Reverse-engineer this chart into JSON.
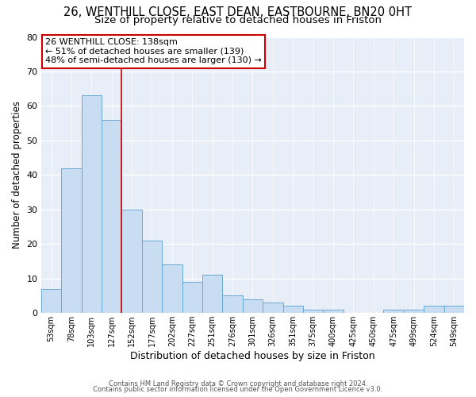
{
  "title": "26, WENTHILL CLOSE, EAST DEAN, EASTBOURNE, BN20 0HT",
  "subtitle": "Size of property relative to detached houses in Friston",
  "xlabel": "Distribution of detached houses by size in Friston",
  "ylabel": "Number of detached properties",
  "categories": [
    "53sqm",
    "78sqm",
    "103sqm",
    "127sqm",
    "152sqm",
    "177sqm",
    "202sqm",
    "227sqm",
    "251sqm",
    "276sqm",
    "301sqm",
    "326sqm",
    "351sqm",
    "375sqm",
    "400sqm",
    "425sqm",
    "450sqm",
    "475sqm",
    "499sqm",
    "524sqm",
    "549sqm"
  ],
  "values": [
    7,
    42,
    63,
    56,
    30,
    21,
    14,
    9,
    11,
    5,
    4,
    3,
    2,
    1,
    1,
    0,
    0,
    1,
    1,
    2,
    2
  ],
  "bar_color": "#c9ddf2",
  "bar_edge_color": "#6aaad4",
  "vline_color": "#cc0000",
  "annotation_text": "26 WENTHILL CLOSE: 138sqm\n← 51% of detached houses are smaller (139)\n48% of semi-detached houses are larger (130) →",
  "annotation_box_color": "#ffffff",
  "annotation_box_edge": "#cc0000",
  "ylim": [
    0,
    80
  ],
  "yticks": [
    0,
    10,
    20,
    30,
    40,
    50,
    60,
    70,
    80
  ],
  "footer1": "Contains HM Land Registry data © Crown copyright and database right 2024.",
  "footer2": "Contains public sector information licensed under the Open Government Licence v3.0.",
  "plot_bg_color": "#e8eef8",
  "fig_bg_color": "#ffffff",
  "grid_color": "#ffffff",
  "title_fontsize": 10.5,
  "subtitle_fontsize": 9.5,
  "ylabel_fontsize": 8.5,
  "xlabel_fontsize": 9
}
